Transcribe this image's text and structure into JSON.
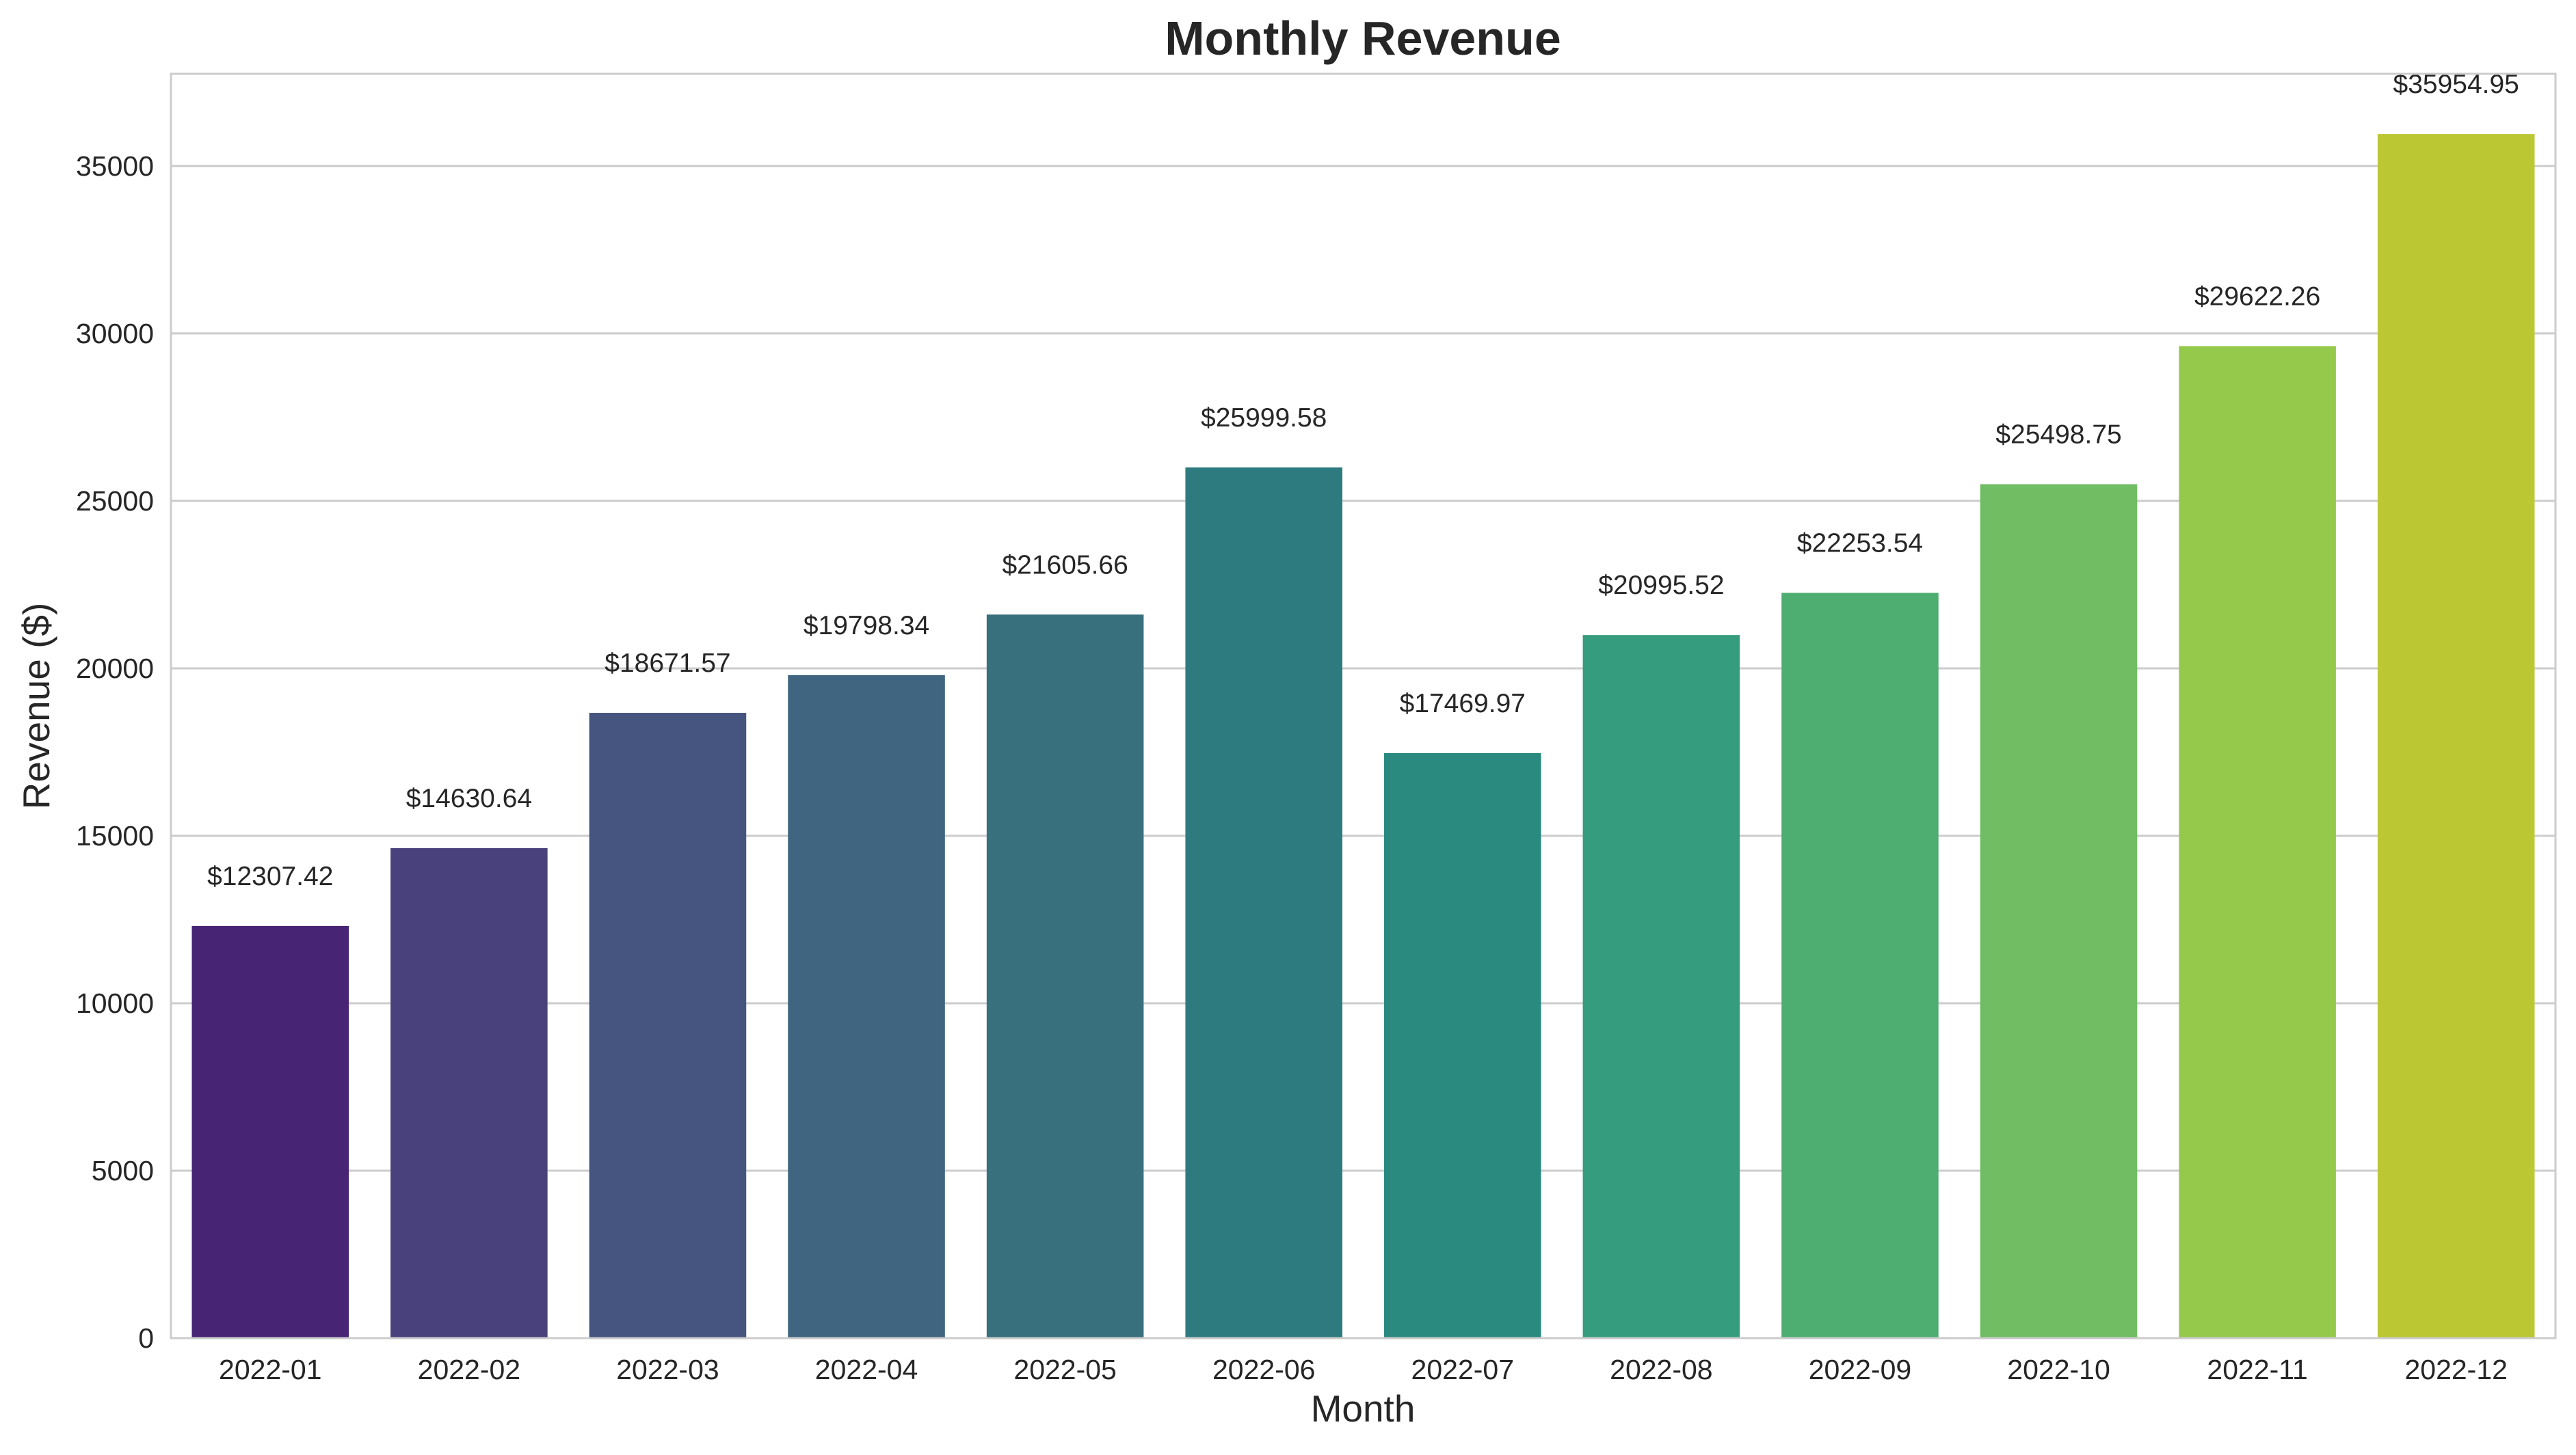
{
  "chart_data": {
    "type": "bar",
    "title": "Monthly Revenue",
    "xlabel": "Month",
    "ylabel": "Revenue ($)",
    "categories": [
      "2022-01",
      "2022-02",
      "2022-03",
      "2022-04",
      "2022-05",
      "2022-06",
      "2022-07",
      "2022-08",
      "2022-09",
      "2022-10",
      "2022-11",
      "2022-12"
    ],
    "values": [
      12307.42,
      14630.64,
      18671.57,
      19798.34,
      21605.66,
      25999.58,
      17469.97,
      20995.52,
      22253.54,
      25498.75,
      29622.26,
      35954.95
    ],
    "data_labels": [
      "$12307.42",
      "$14630.64",
      "$18671.57",
      "$19798.34",
      "$21605.66",
      "$25999.58",
      "$17469.97",
      "$20995.52",
      "$22253.54",
      "$25498.75",
      "$29622.26",
      "$35954.95"
    ],
    "ylim": [
      0,
      37752.7
    ],
    "yticks": [
      0,
      5000,
      10000,
      15000,
      20000,
      25000,
      30000,
      35000
    ],
    "grid": "horizontal",
    "colors": [
      "#482475",
      "#48417c",
      "#46557f",
      "#3f6580",
      "#38707d",
      "#2e7b7f",
      "#2a8a7f",
      "#359d7d",
      "#4eae72",
      "#70bd64",
      "#95c94c",
      "#bbc833"
    ]
  }
}
